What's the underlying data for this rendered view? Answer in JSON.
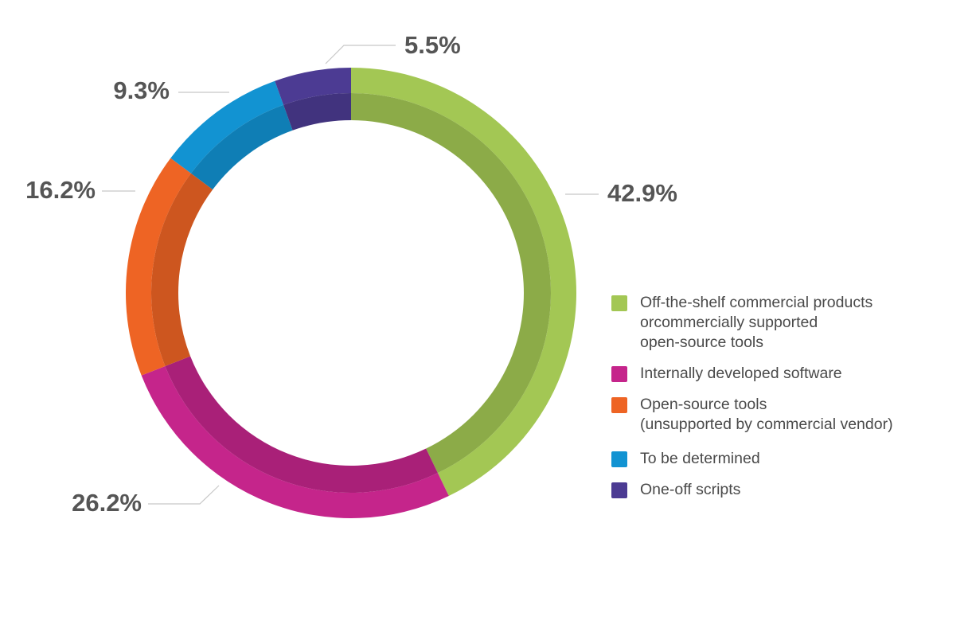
{
  "chart_data": {
    "type": "pie",
    "style": "donut",
    "slices": [
      {
        "label": "Off-the-shelf commercial products\norcommercially supported\nopen-source tools",
        "value": 42.9,
        "display": "42.9%",
        "color": "#a3c754"
      },
      {
        "label": "Internally developed software",
        "value": 26.2,
        "display": "26.2%",
        "color": "#c5258b"
      },
      {
        "label": "Open-source tools\n(unsupported by commercial vendor)",
        "value": 16.2,
        "display": "16.2%",
        "color": "#ee6424"
      },
      {
        "label": "To be determined",
        "value": 9.3,
        "display": "9.3%",
        "color": "#1293d2"
      },
      {
        "label": "One-off scripts",
        "value": 5.5,
        "display": "5.5%",
        "color": "#4c3b93"
      }
    ],
    "legend_position": "right",
    "start": "top",
    "direction": "clockwise"
  }
}
